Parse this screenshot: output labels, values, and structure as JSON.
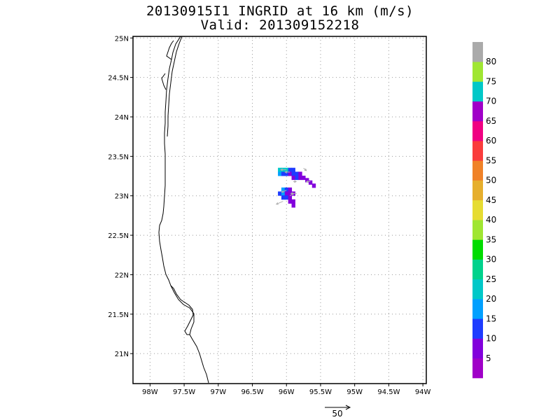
{
  "title": {
    "line1": "20130915I1 INGRID at 16 km (m/s)",
    "line2": "Valid: 201309152218"
  },
  "map": {
    "lat_ticks": [
      "25N",
      "24.5N",
      "24N",
      "23.5N",
      "23N",
      "22.5N",
      "22N",
      "21.5N",
      "21N"
    ],
    "lat_values": [
      25,
      24.5,
      24,
      23.5,
      23,
      22.5,
      22,
      21.5,
      21
    ],
    "lon_ticks": [
      "98W",
      "97.5W",
      "97W",
      "96.5W",
      "96W",
      "95.5W",
      "95W",
      "94.5W",
      "94W"
    ],
    "lon_values": [
      -98,
      -97.5,
      -97,
      -96.5,
      -96,
      -95.5,
      -95,
      -94.5,
      -94
    ],
    "lon_range": [
      -98.25,
      -93.95
    ],
    "lat_range": [
      20.62,
      25.02
    ],
    "grid": true,
    "coastline_color": "#000000",
    "grid_color": "#999999"
  },
  "colorbar": {
    "labels": [
      "5",
      "10",
      "15",
      "20",
      "25",
      "30",
      "35",
      "40",
      "45",
      "50",
      "55",
      "60",
      "65",
      "70",
      "75",
      "80"
    ],
    "colors": [
      "#a000c8",
      "#8200dc",
      "#1e3cff",
      "#00a0ff",
      "#00c8c8",
      "#00d28c",
      "#00dc00",
      "#a0e632",
      "#e6dc32",
      "#e6af2d",
      "#f08228",
      "#fa3c3c",
      "#f00082",
      "#a000c8",
      "#00c8c8",
      "#a0e632",
      "#aaaaaa"
    ]
  },
  "wind_data": {
    "units": "m/s",
    "cells": [
      {
        "lon": -96.1,
        "lat": 23.33,
        "speed": 22
      },
      {
        "lon": -96.05,
        "lat": 23.33,
        "speed": 22
      },
      {
        "lon": -96.0,
        "lat": 23.33,
        "speed": 22
      },
      {
        "lon": -95.95,
        "lat": 23.33,
        "speed": 14
      },
      {
        "lon": -95.9,
        "lat": 23.33,
        "speed": 11
      },
      {
        "lon": -96.1,
        "lat": 23.28,
        "speed": 15
      },
      {
        "lon": -96.05,
        "lat": 23.28,
        "speed": 14
      },
      {
        "lon": -96.0,
        "lat": 23.28,
        "speed": 12
      },
      {
        "lon": -95.95,
        "lat": 23.28,
        "speed": 9
      },
      {
        "lon": -95.9,
        "lat": 23.28,
        "speed": 10
      },
      {
        "lon": -95.85,
        "lat": 23.28,
        "speed": 10
      },
      {
        "lon": -95.8,
        "lat": 23.28,
        "speed": 9
      },
      {
        "lon": -95.9,
        "lat": 23.23,
        "speed": 9
      },
      {
        "lon": -95.85,
        "lat": 23.23,
        "speed": 10
      },
      {
        "lon": -95.8,
        "lat": 23.23,
        "speed": 9
      },
      {
        "lon": -95.75,
        "lat": 23.23,
        "speed": 9
      },
      {
        "lon": -95.7,
        "lat": 23.2,
        "speed": 9
      },
      {
        "lon": -95.65,
        "lat": 23.17,
        "speed": 9
      },
      {
        "lon": -95.6,
        "lat": 23.13,
        "speed": 9
      },
      {
        "lon": -96.05,
        "lat": 23.08,
        "speed": 15
      },
      {
        "lon": -96.0,
        "lat": 23.08,
        "speed": 14
      },
      {
        "lon": -95.95,
        "lat": 23.08,
        "speed": 9
      },
      {
        "lon": -96.1,
        "lat": 23.03,
        "speed": 14
      },
      {
        "lon": -96.05,
        "lat": 23.03,
        "speed": 15
      },
      {
        "lon": -96.0,
        "lat": 23.03,
        "speed": 9
      },
      {
        "lon": -95.95,
        "lat": 23.03,
        "speed": 8
      },
      {
        "lon": -95.9,
        "lat": 23.03,
        "speed": 9
      },
      {
        "lon": -96.05,
        "lat": 22.98,
        "speed": 14
      },
      {
        "lon": -96.0,
        "lat": 22.98,
        "speed": 10
      },
      {
        "lon": -95.95,
        "lat": 22.98,
        "speed": 9
      },
      {
        "lon": -95.95,
        "lat": 22.93,
        "speed": 9
      },
      {
        "lon": -95.9,
        "lat": 22.93,
        "speed": 9
      },
      {
        "lon": -95.9,
        "lat": 22.88,
        "speed": 9
      }
    ],
    "vectors": [
      {
        "lon": -96.0,
        "lat": 23.33,
        "u": -12,
        "v": 0
      },
      {
        "lon": -95.95,
        "lat": 23.3,
        "u": -10,
        "v": 0
      },
      {
        "lon": -95.75,
        "lat": 23.35,
        "u": 6,
        "v": -5
      },
      {
        "lon": -95.65,
        "lat": 23.18,
        "u": -8,
        "v": 0
      },
      {
        "lon": -95.9,
        "lat": 23.18,
        "u": 6,
        "v": 0
      },
      {
        "lon": -96.0,
        "lat": 23.07,
        "u": -10,
        "v": -4
      },
      {
        "lon": -95.85,
        "lat": 23.03,
        "u": -12,
        "v": 0
      },
      {
        "lon": -95.95,
        "lat": 23.0,
        "u": 8,
        "v": 5
      },
      {
        "lon": -96.05,
        "lat": 22.93,
        "u": -14,
        "v": -6
      }
    ]
  },
  "reference_vector": {
    "label": "50",
    "value": 50
  }
}
